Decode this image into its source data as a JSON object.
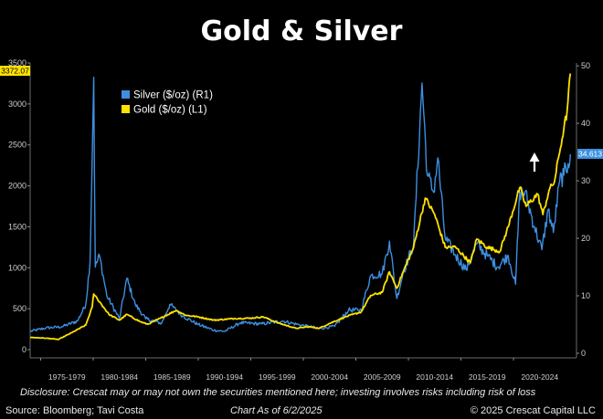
{
  "chart_data": {
    "type": "line",
    "title": "Gold & Silver",
    "left_axis": {
      "range": [
        -100,
        3500
      ],
      "ticks": [
        0,
        500,
        1000,
        1500,
        2000,
        2500,
        3000,
        3500
      ]
    },
    "right_axis": {
      "range": [
        -0.8,
        50.5
      ],
      "ticks": [
        0,
        10,
        20,
        30,
        40,
        50
      ]
    },
    "x_range": [
      1974,
      2026
    ],
    "x_tick_labels": [
      "1975-1979",
      "1980-1984",
      "1985-1989",
      "1990-1994",
      "1995-1999",
      "2000-2004",
      "2005-2009",
      "2010-2014",
      "2015-2019",
      "2020-2024"
    ],
    "last_value_labels": {
      "gold": "3372.07",
      "silver": "34.613"
    },
    "legend_placement": "top-left",
    "series": [
      {
        "name": "Silver ($/oz) (R1)",
        "axis": "right",
        "color": "#3d8fe0",
        "points": [
          [
            1974,
            3.8
          ],
          [
            1975.5,
            4.4
          ],
          [
            1977,
            4.6
          ],
          [
            1978.5,
            5.6
          ],
          [
            1979.3,
            8.5
          ],
          [
            1979.7,
            16
          ],
          [
            1980.05,
            48
          ],
          [
            1980.2,
            15
          ],
          [
            1980.6,
            17
          ],
          [
            1981.3,
            10
          ],
          [
            1982.5,
            6
          ],
          [
            1983.2,
            13
          ],
          [
            1984,
            8.5
          ],
          [
            1985,
            6
          ],
          [
            1986.5,
            5.2
          ],
          [
            1987.3,
            8.5
          ],
          [
            1988.5,
            6.5
          ],
          [
            1990,
            5.0
          ],
          [
            1991.5,
            4.0
          ],
          [
            1992.5,
            3.8
          ],
          [
            1994,
            5.3
          ],
          [
            1996,
            5.1
          ],
          [
            1998,
            5.6
          ],
          [
            1999.5,
            5.0
          ],
          [
            2001.5,
            4.3
          ],
          [
            2003,
            4.7
          ],
          [
            2004.3,
            7.5
          ],
          [
            2005.5,
            7.5
          ],
          [
            2006.4,
            13.5
          ],
          [
            2007.5,
            13.8
          ],
          [
            2008.2,
            19.5
          ],
          [
            2008.9,
            9.5
          ],
          [
            2009.5,
            14
          ],
          [
            2010.5,
            19
          ],
          [
            2011.3,
            47
          ],
          [
            2011.8,
            31
          ],
          [
            2012.4,
            28
          ],
          [
            2012.8,
            34
          ],
          [
            2013.5,
            20
          ],
          [
            2014.5,
            17
          ],
          [
            2015.5,
            14.5
          ],
          [
            2016.5,
            19
          ],
          [
            2017.5,
            17
          ],
          [
            2018.5,
            15
          ],
          [
            2019.5,
            17
          ],
          [
            2020.2,
            12
          ],
          [
            2020.6,
            28
          ],
          [
            2021.1,
            28
          ],
          [
            2022,
            22
          ],
          [
            2022.7,
            18
          ],
          [
            2023.3,
            25
          ],
          [
            2023.8,
            21
          ],
          [
            2024.4,
            30
          ],
          [
            2024.8,
            31
          ],
          [
            2025.2,
            33
          ],
          [
            2025.42,
            34.613
          ]
        ]
      },
      {
        "name": "Gold ($/oz) (L1)",
        "axis": "left",
        "color": "#ffe200",
        "points": [
          [
            1974,
            150
          ],
          [
            1975.5,
            140
          ],
          [
            1976.7,
            125
          ],
          [
            1978,
            210
          ],
          [
            1979.3,
            300
          ],
          [
            1979.9,
            520
          ],
          [
            1980.05,
            680
          ],
          [
            1980.4,
            620
          ],
          [
            1981.5,
            430
          ],
          [
            1982.5,
            360
          ],
          [
            1983.2,
            430
          ],
          [
            1984.5,
            340
          ],
          [
            1985.2,
            310
          ],
          [
            1986.5,
            390
          ],
          [
            1987.9,
            480
          ],
          [
            1988.8,
            420
          ],
          [
            1990,
            400
          ],
          [
            1991.5,
            360
          ],
          [
            1993.5,
            380
          ],
          [
            1995,
            385
          ],
          [
            1996.2,
            400
          ],
          [
            1997.5,
            330
          ],
          [
            1999.3,
            260
          ],
          [
            2000.5,
            280
          ],
          [
            2001.5,
            260
          ],
          [
            2002.5,
            320
          ],
          [
            2004,
            400
          ],
          [
            2005.5,
            460
          ],
          [
            2006.4,
            660
          ],
          [
            2007.5,
            700
          ],
          [
            2008.2,
            950
          ],
          [
            2008.9,
            750
          ],
          [
            2009.5,
            950
          ],
          [
            2010.5,
            1250
          ],
          [
            2011.6,
            1850
          ],
          [
            2012.5,
            1650
          ],
          [
            2013.5,
            1250
          ],
          [
            2014.5,
            1250
          ],
          [
            2015.9,
            1060
          ],
          [
            2016.5,
            1350
          ],
          [
            2017.5,
            1250
          ],
          [
            2018.7,
            1200
          ],
          [
            2019.5,
            1500
          ],
          [
            2020.6,
            1980
          ],
          [
            2021.2,
            1750
          ],
          [
            2022.3,
            1900
          ],
          [
            2022.8,
            1650
          ],
          [
            2023.4,
            1950
          ],
          [
            2023.9,
            2050
          ],
          [
            2024.3,
            2350
          ],
          [
            2024.8,
            2700
          ],
          [
            2025.1,
            2900
          ],
          [
            2025.42,
            3372.07
          ]
        ]
      }
    ]
  },
  "footer": {
    "disclosure": "Disclosure: Crescat may or may not own the securities mentioned here; investing involves risks including risk of loss",
    "source": "Source: Bloomberg; Tavi Costa",
    "as_of": "Chart As of 6/2/2025",
    "copyright": "© 2025 Crescat Capital LLC"
  }
}
